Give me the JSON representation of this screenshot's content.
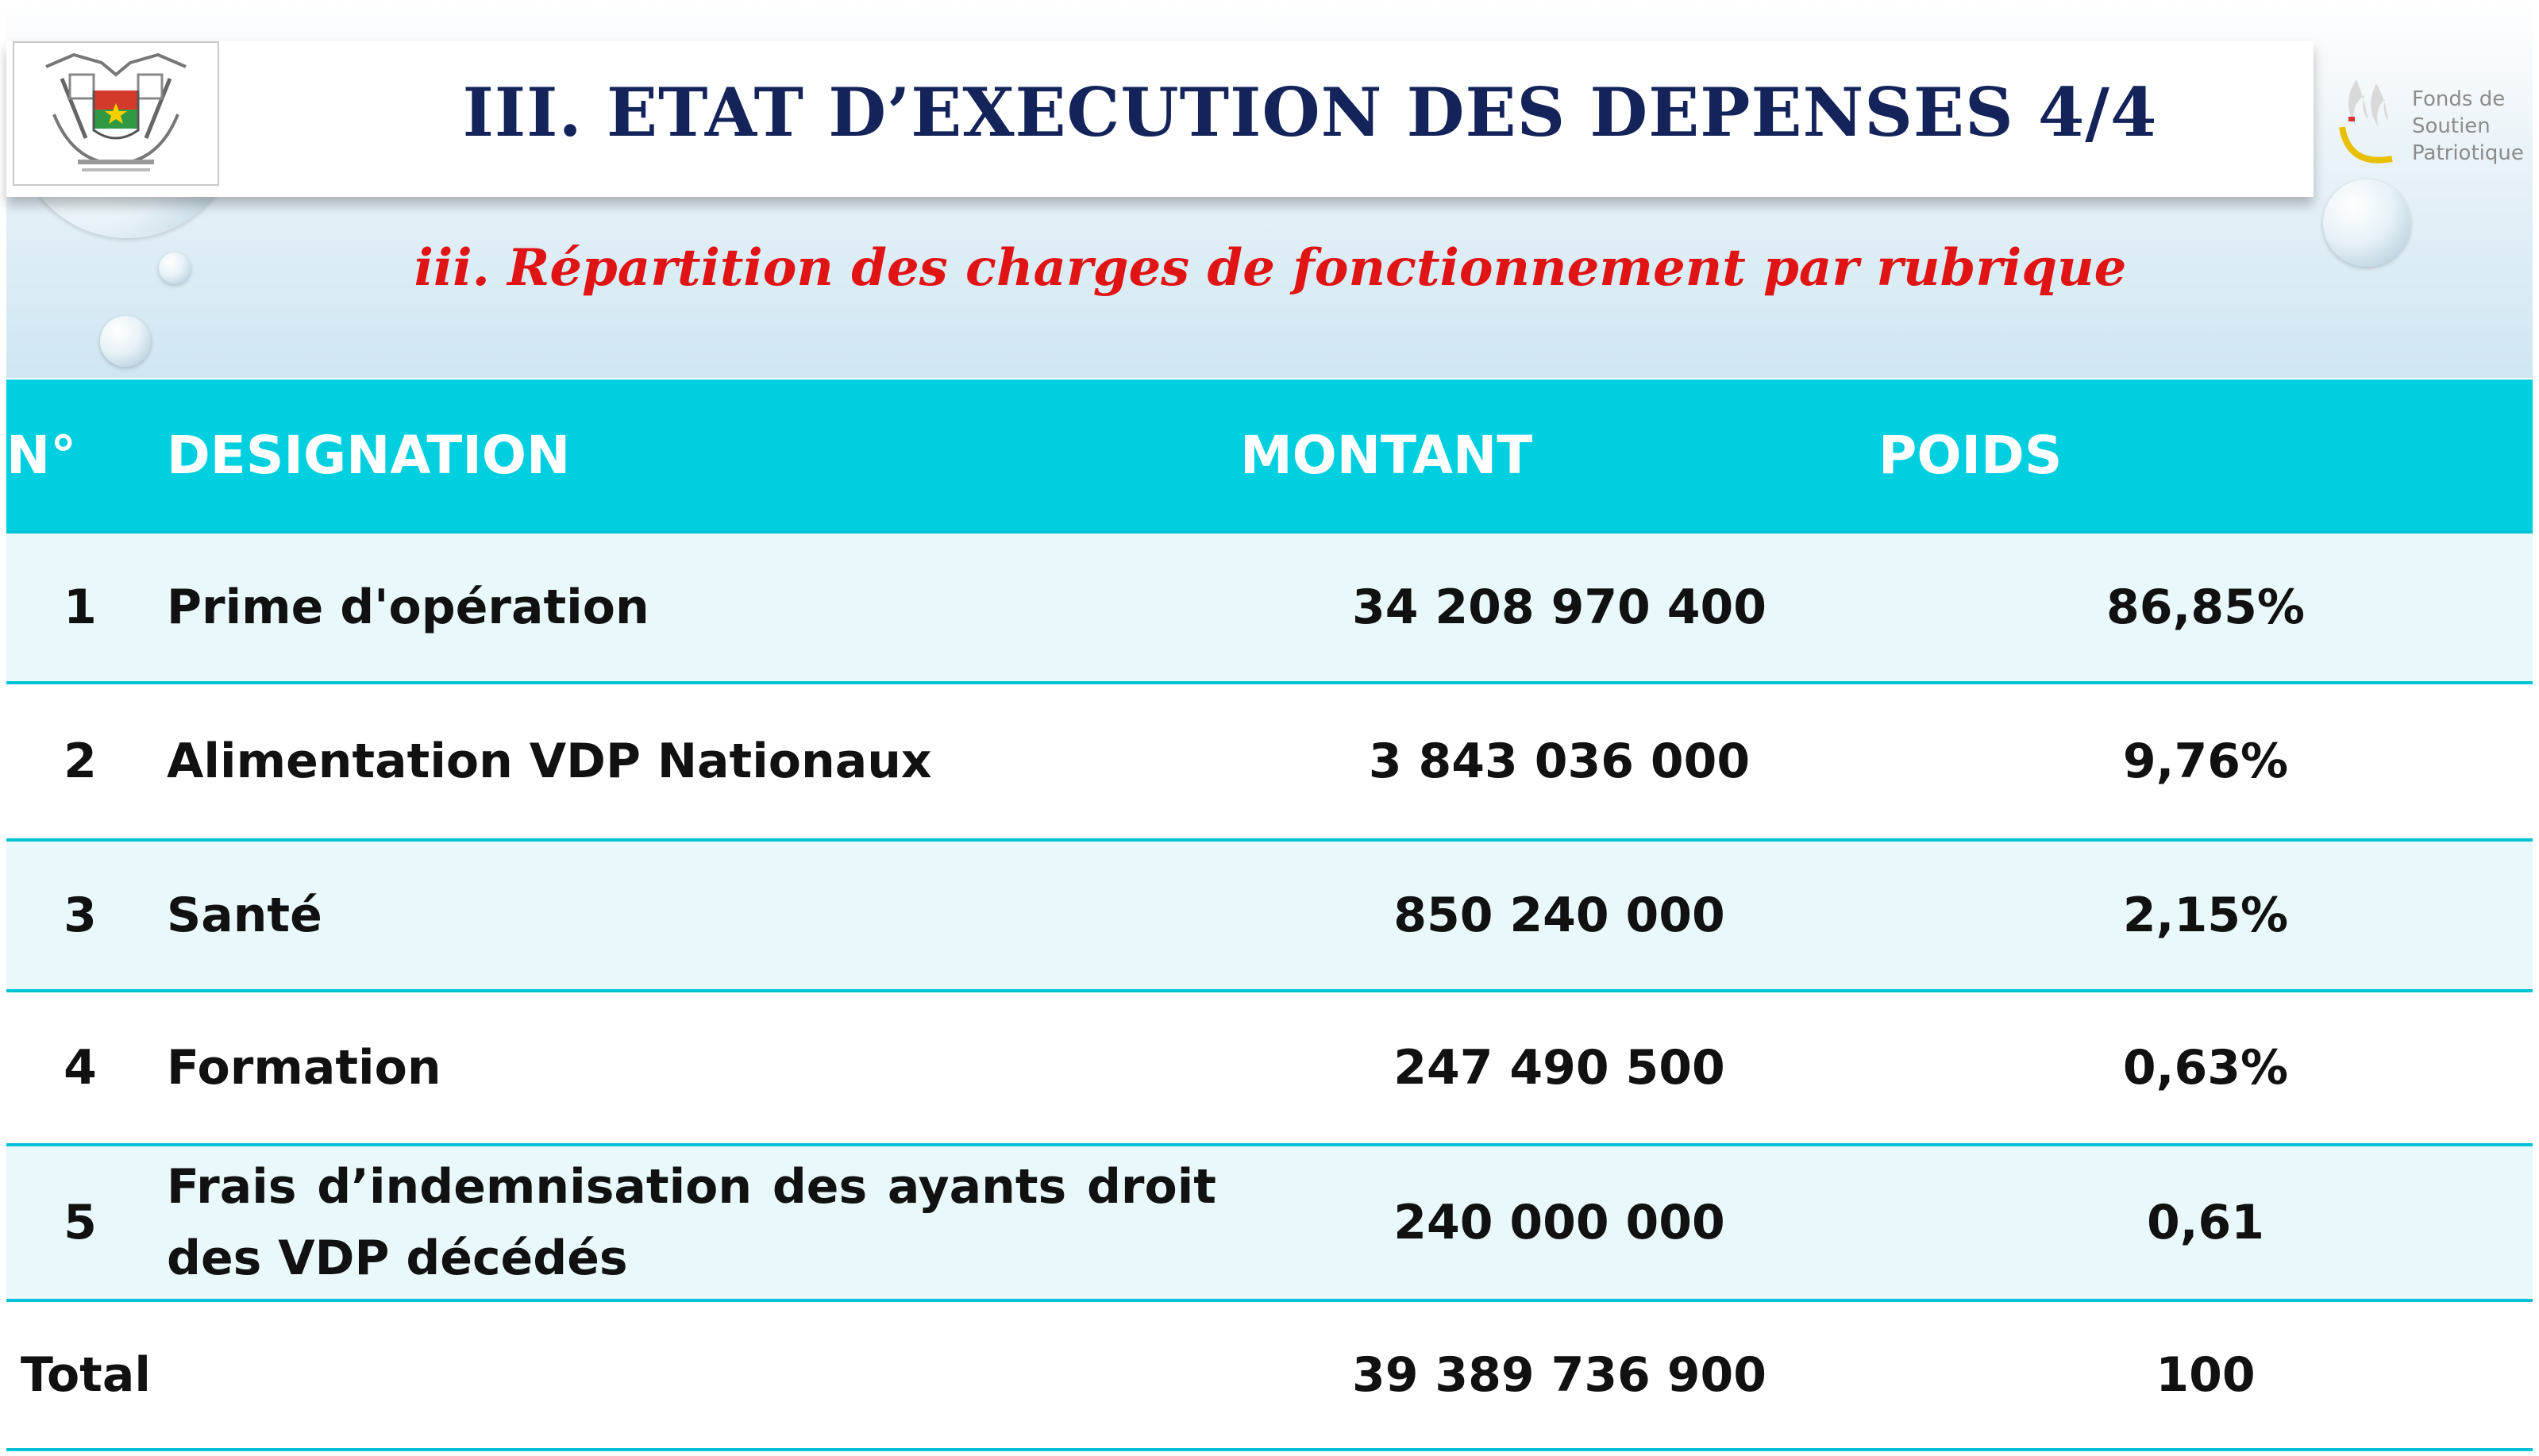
{
  "header": {
    "title": "III. ETAT D’EXECUTION DES DEPENSES 4/4",
    "subtitle": "iii. Répartition des charges de fonctionnement par rubrique"
  },
  "logo": {
    "line1": "Fonds de",
    "line2": "Soutien",
    "line3": "Patriotique",
    "colors": {
      "red": "#e03030",
      "yellow": "#e8c000",
      "green": "#2a9a3a"
    }
  },
  "table": {
    "columns": {
      "no": "N°",
      "designation": "DESIGNATION",
      "montant": "MONTANT",
      "poids": "POIDS"
    },
    "rows": [
      {
        "no": "1",
        "designation": "Prime d'opération",
        "montant": "34 208 970 400",
        "poids": "86,85%"
      },
      {
        "no": "2",
        "designation": "Alimentation VDP Nationaux",
        "montant": "3 843 036 000",
        "poids": "9,76%"
      },
      {
        "no": "3",
        "designation": "Santé",
        "montant": "850 240 000",
        "poids": "2,15%"
      },
      {
        "no": "4",
        "designation": "Formation",
        "montant": "247 490 500",
        "poids": "0,63%"
      },
      {
        "no": "5",
        "designation": "Frais d’indemnisation des ayants droit des VDP décédés",
        "montant": "240 000 000",
        "poids": "0,61"
      }
    ],
    "total": {
      "label": "Total",
      "montant": "39 389 736 900",
      "poids": "100"
    }
  },
  "colors": {
    "header_row": "#00cfe0",
    "title": "#14245a",
    "subtitle": "#e01414"
  }
}
